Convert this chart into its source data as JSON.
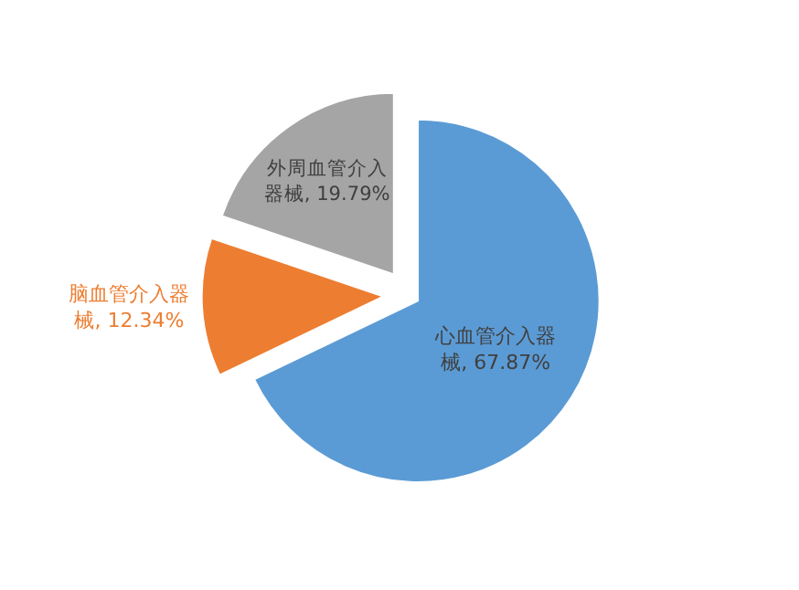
{
  "chart_data": {
    "type": "pie",
    "categories": [
      "心血管介入器械",
      "脑血管介入器械",
      "外周血管介入器械"
    ],
    "values": [
      67.87,
      12.34,
      19.79
    ],
    "colors": [
      "#5b9bd5",
      "#ed7d31",
      "#a5a5a5"
    ],
    "value_labels": [
      "67.87%",
      "12.34%",
      "19.79%"
    ],
    "legend": false
  }
}
